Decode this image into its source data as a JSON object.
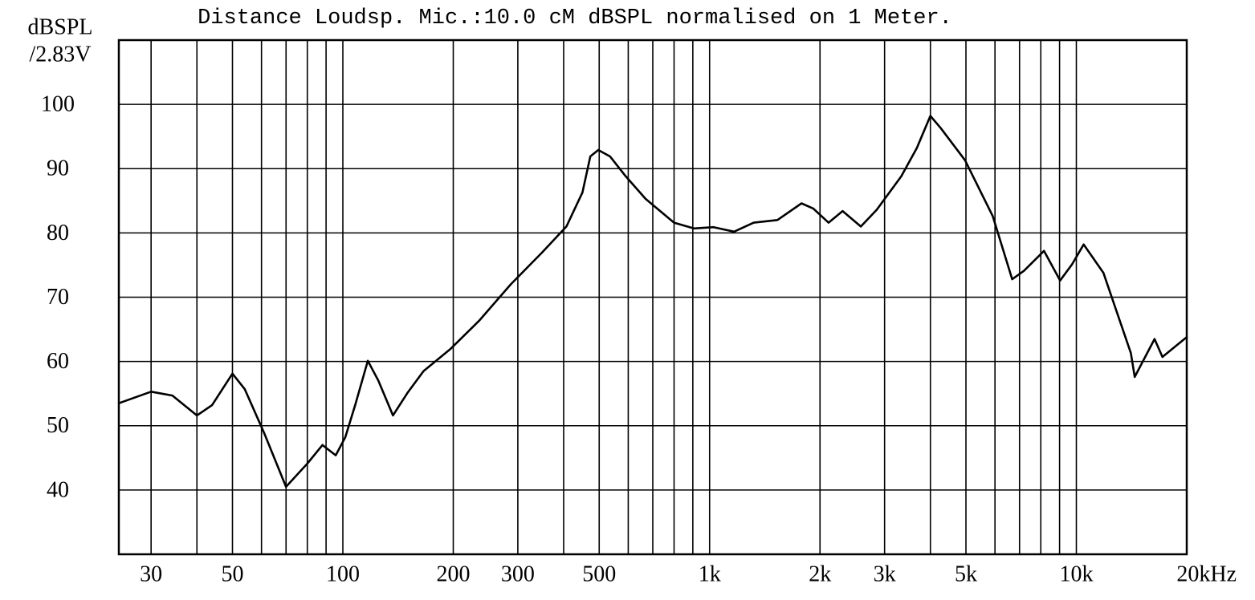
{
  "chart_data": {
    "type": "line",
    "title": "Distance Loudsp. Mic.:10.0 cM dBSPL normalised on 1 Meter.",
    "ylabel": [
      "dBSPL",
      "/2.83V"
    ],
    "log_x": true,
    "xlim": [
      24.5,
      20000
    ],
    "ylim": [
      30,
      110
    ],
    "xticks": [
      30,
      50,
      100,
      200,
      300,
      500,
      {
        "value": 1000,
        "label": "1k"
      },
      {
        "value": 2000,
        "label": "2k"
      },
      {
        "value": 3000,
        "label": "3k"
      },
      {
        "value": 5000,
        "label": "5k"
      },
      {
        "value": 10000,
        "label": "10k"
      },
      {
        "value": 20000,
        "label": "20kHz"
      }
    ],
    "xgrid": [
      30,
      40,
      50,
      60,
      70,
      80,
      90,
      100,
      200,
      300,
      400,
      500,
      600,
      700,
      800,
      900,
      1000,
      2000,
      3000,
      4000,
      5000,
      6000,
      7000,
      8000,
      9000,
      10000
    ],
    "yticks": [
      40,
      50,
      60,
      70,
      80,
      90,
      100
    ],
    "grid": true,
    "color": "#000000",
    "x": [
      24.5,
      30,
      34.3,
      40,
      44,
      50,
      54,
      61,
      70,
      80,
      88,
      95.6,
      101.5,
      108,
      117,
      125,
      137,
      150,
      166,
      197,
      235,
      287,
      350,
      407,
      450,
      473,
      497,
      535,
      591,
      669,
      800,
      906,
      1025,
      1166,
      1319,
      1531,
      1781,
      1917,
      2110,
      2305,
      2585,
      2855,
      3331,
      3673,
      3999,
      4270,
      4971,
      5916,
      6686,
      7200,
      8160,
      9030,
      9730,
      10470,
      11850,
      14080,
      14430,
      16340,
      17170,
      20000
    ],
    "values": [
      53.5,
      55.3,
      54.7,
      51.6,
      53.2,
      58.1,
      55.7,
      48.9,
      40.5,
      44.1,
      47,
      45.4,
      48.2,
      53.2,
      60.1,
      57,
      51.6,
      55.1,
      58.5,
      62,
      66.3,
      72,
      77,
      81,
      86.3,
      91.9,
      92.9,
      91.9,
      88.8,
      85.3,
      81.6,
      80.7,
      80.9,
      80.2,
      81.6,
      82,
      84.6,
      83.8,
      81.6,
      83.4,
      81,
      83.6,
      88.8,
      93.2,
      98.2,
      96.3,
      91.3,
      82.6,
      72.8,
      74.1,
      77.2,
      72.6,
      75.1,
      78.2,
      73.8,
      61.3,
      57.6,
      63.5,
      60.7,
      63.8
    ]
  }
}
